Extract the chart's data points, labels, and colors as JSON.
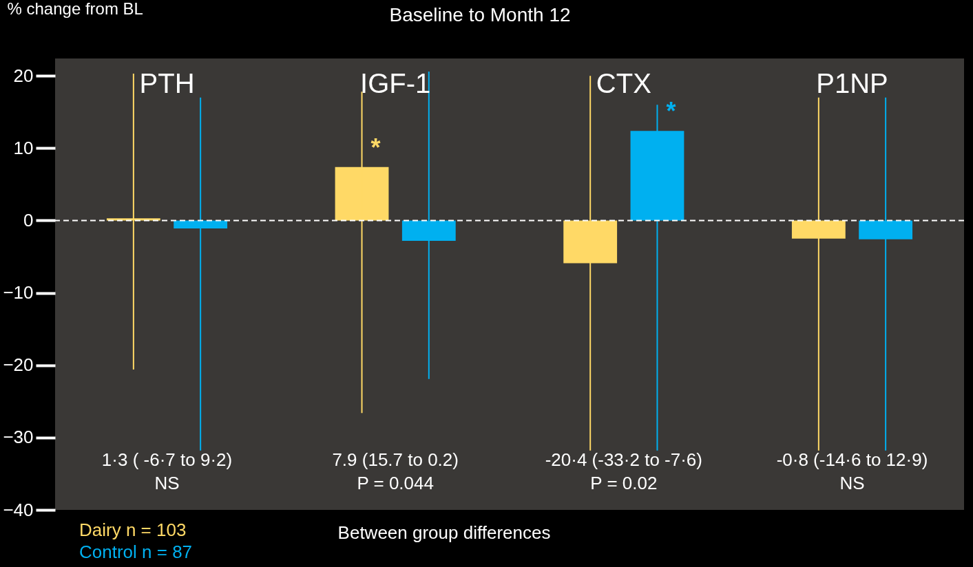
{
  "chart_data": {
    "type": "bar",
    "title": "Baseline to Month 12",
    "ylabel": "% change from BL",
    "categories": [
      "PTH",
      "IGF-1",
      "CTX",
      "P1NP"
    ],
    "series": [
      {
        "name": "Dairy n = 103",
        "color": "#ffd966",
        "values": [
          0.3,
          7.4,
          -5.9,
          -2.5
        ],
        "errors": [
          [
            -20.6,
            20.3
          ],
          [
            -26.6,
            17.8
          ],
          [
            -31.8,
            20.0
          ],
          [
            -31.8,
            17.0
          ]
        ],
        "value_labels": [
          null,
          "*",
          null,
          null
        ]
      },
      {
        "name": "Control n = 87",
        "color": "#00b0f0",
        "values": [
          -1.1,
          -2.8,
          12.4,
          -2.6
        ],
        "errors": [
          [
            -31.8,
            17.0
          ],
          [
            -21.9,
            20.6
          ],
          [
            -31.8,
            16.0
          ],
          [
            -31.8,
            17.0
          ]
        ],
        "value_labels": [
          null,
          null,
          "*",
          null
        ]
      }
    ],
    "ylim": [
      -40,
      22.4
    ],
    "yticks": [
      20,
      10,
      0,
      -10,
      -20,
      -30,
      -40
    ],
    "grid": false,
    "legend": "bottom left",
    "ref_lines": [
      {
        "axis": "y",
        "value": 0,
        "color": "#ffffff",
        "line_style": "dashed"
      }
    ],
    "annotations": [
      "1·3 ( -6·7 to 9·2)",
      "7.9 (15.7 to 0.2)",
      "-20·4 (-33·2 to -7·6)",
      "-0·8 (-14·6 to 12·9)",
      "NS",
      "P = 0.044",
      "P = 0.02",
      "NS",
      "Between group differences"
    ]
  }
}
